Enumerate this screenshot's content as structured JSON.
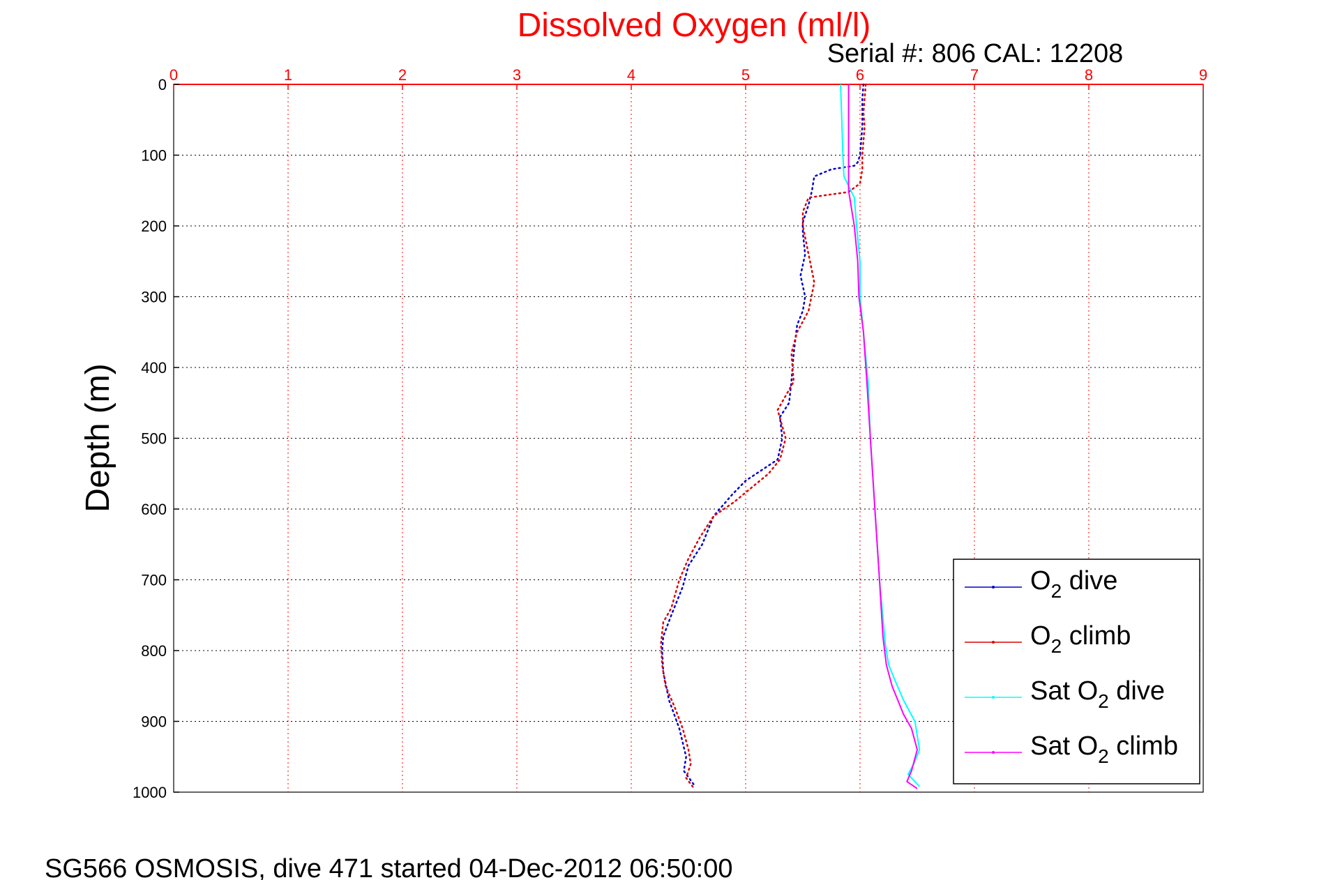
{
  "chart_data": {
    "type": "line",
    "title": "Dissolved Oxygen (ml/l)",
    "subtitle": "Serial #: 806  CAL: 12208",
    "xlabel": "",
    "ylabel": "Depth (m)",
    "footer": "SG566 OSMOSIS, dive 471 started 04-Dec-2012 06:50:00",
    "xlim": [
      0,
      9
    ],
    "ylim": [
      0,
      1000
    ],
    "y_reversed": true,
    "x_axis_position": "top",
    "x_ticks": [
      "0",
      "1",
      "2",
      "3",
      "4",
      "5",
      "6",
      "7",
      "8",
      "9"
    ],
    "y_ticks": [
      "0",
      "100",
      "200",
      "300",
      "400",
      "500",
      "600",
      "700",
      "800",
      "900",
      "1000"
    ],
    "grid": true,
    "legend_position": "bottom-right",
    "colors": {
      "title": "#ff0000",
      "x_ticks": "#ff0000",
      "grid": "#ff0000",
      "y_grid": "#000000"
    },
    "series": [
      {
        "name": "O2 dive",
        "legend_main": "O",
        "legend_sub": "2",
        "legend_rest": " dive",
        "color": "#0000cc",
        "style": "dotted",
        "points": [
          [
            6.03,
            0
          ],
          [
            6.02,
            20
          ],
          [
            6.02,
            40
          ],
          [
            6.02,
            60
          ],
          [
            6.01,
            80
          ],
          [
            6.0,
            100
          ],
          [
            5.98,
            110
          ],
          [
            5.95,
            115
          ],
          [
            5.75,
            120
          ],
          [
            5.6,
            130
          ],
          [
            5.58,
            150
          ],
          [
            5.55,
            170
          ],
          [
            5.5,
            195
          ],
          [
            5.5,
            210
          ],
          [
            5.52,
            240
          ],
          [
            5.48,
            270
          ],
          [
            5.52,
            300
          ],
          [
            5.5,
            320
          ],
          [
            5.45,
            340
          ],
          [
            5.42,
            380
          ],
          [
            5.4,
            420
          ],
          [
            5.38,
            450
          ],
          [
            5.3,
            470
          ],
          [
            5.32,
            500
          ],
          [
            5.28,
            530
          ],
          [
            5.0,
            560
          ],
          [
            4.88,
            580
          ],
          [
            4.72,
            610
          ],
          [
            4.62,
            650
          ],
          [
            4.5,
            680
          ],
          [
            4.45,
            710
          ],
          [
            4.35,
            750
          ],
          [
            4.28,
            780
          ],
          [
            4.27,
            800
          ],
          [
            4.28,
            830
          ],
          [
            4.33,
            870
          ],
          [
            4.42,
            910
          ],
          [
            4.48,
            950
          ],
          [
            4.46,
            970
          ],
          [
            4.55,
            990
          ]
        ]
      },
      {
        "name": "O2 climb",
        "legend_main": "O",
        "legend_sub": "2",
        "legend_rest": " climb",
        "color": "#dd0000",
        "style": "dotted",
        "points": [
          [
            6.05,
            0
          ],
          [
            6.04,
            20
          ],
          [
            6.03,
            40
          ],
          [
            6.04,
            60
          ],
          [
            6.03,
            80
          ],
          [
            6.02,
            100
          ],
          [
            6.02,
            120
          ],
          [
            6.0,
            140
          ],
          [
            5.9,
            152
          ],
          [
            5.55,
            160
          ],
          [
            5.5,
            180
          ],
          [
            5.5,
            200
          ],
          [
            5.55,
            240
          ],
          [
            5.6,
            280
          ],
          [
            5.55,
            320
          ],
          [
            5.45,
            350
          ],
          [
            5.4,
            380
          ],
          [
            5.42,
            420
          ],
          [
            5.28,
            460
          ],
          [
            5.35,
            500
          ],
          [
            5.3,
            530
          ],
          [
            5.2,
            550
          ],
          [
            5.05,
            570
          ],
          [
            4.9,
            590
          ],
          [
            4.72,
            610
          ],
          [
            4.6,
            640
          ],
          [
            4.5,
            670
          ],
          [
            4.42,
            700
          ],
          [
            4.35,
            740
          ],
          [
            4.28,
            760
          ],
          [
            4.26,
            790
          ],
          [
            4.27,
            820
          ],
          [
            4.3,
            850
          ],
          [
            4.38,
            880
          ],
          [
            4.45,
            910
          ],
          [
            4.5,
            940
          ],
          [
            4.52,
            960
          ],
          [
            4.48,
            980
          ],
          [
            4.55,
            995
          ]
        ]
      },
      {
        "name": "Sat O2 dive",
        "legend_main": "Sat O",
        "legend_sub": "2",
        "legend_rest": " dive",
        "color": "#00ffff",
        "style": "solid",
        "points": [
          [
            5.83,
            0
          ],
          [
            5.84,
            50
          ],
          [
            5.85,
            100
          ],
          [
            5.86,
            130
          ],
          [
            5.95,
            160
          ],
          [
            5.97,
            200
          ],
          [
            6.0,
            250
          ],
          [
            6.0,
            300
          ],
          [
            6.03,
            350
          ],
          [
            6.07,
            420
          ],
          [
            6.09,
            500
          ],
          [
            6.13,
            600
          ],
          [
            6.17,
            700
          ],
          [
            6.22,
            790
          ],
          [
            6.25,
            820
          ],
          [
            6.3,
            840
          ],
          [
            6.38,
            870
          ],
          [
            6.48,
            900
          ],
          [
            6.52,
            940
          ],
          [
            6.47,
            960
          ],
          [
            6.42,
            975
          ],
          [
            6.52,
            992
          ]
        ]
      },
      {
        "name": "Sat O2 climb",
        "legend_main": "Sat O",
        "legend_sub": "2",
        "legend_rest": " climb",
        "color": "#ff00ff",
        "style": "solid",
        "points": [
          [
            5.9,
            0
          ],
          [
            5.9,
            50
          ],
          [
            5.9,
            100
          ],
          [
            5.9,
            150
          ],
          [
            5.95,
            200
          ],
          [
            5.98,
            250
          ],
          [
            5.99,
            300
          ],
          [
            6.03,
            350
          ],
          [
            6.06,
            420
          ],
          [
            6.09,
            500
          ],
          [
            6.13,
            600
          ],
          [
            6.17,
            700
          ],
          [
            6.2,
            780
          ],
          [
            6.23,
            820
          ],
          [
            6.28,
            850
          ],
          [
            6.38,
            890
          ],
          [
            6.45,
            910
          ],
          [
            6.5,
            940
          ],
          [
            6.45,
            970
          ],
          [
            6.41,
            985
          ],
          [
            6.5,
            995
          ]
        ]
      }
    ]
  }
}
